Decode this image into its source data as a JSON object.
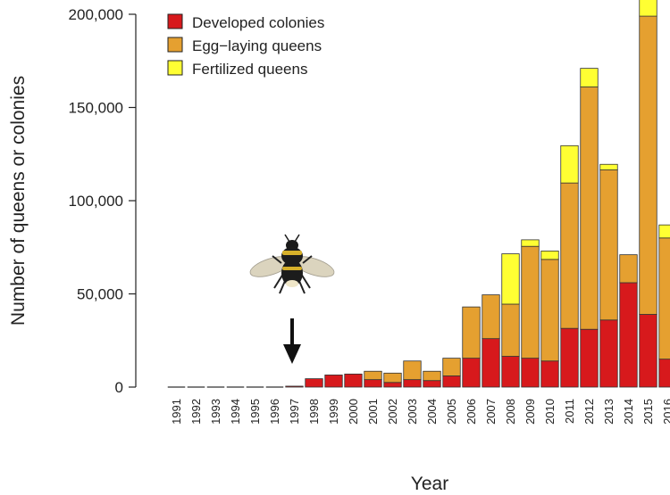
{
  "chart_data": {
    "type": "bar",
    "stacked": true,
    "xlabel": "Year",
    "ylabel": "Number of queens or colonies",
    "ylim": [
      0,
      200000
    ],
    "yticks": [
      0,
      50000,
      100000,
      150000,
      200000
    ],
    "ytick_labels": [
      "0",
      "50,000",
      "100,000",
      "150,000",
      "200,000"
    ],
    "categories": [
      "1991",
      "1992",
      "1993",
      "1994",
      "1995",
      "1996",
      "1997",
      "1998",
      "1999",
      "2000",
      "2001",
      "2002",
      "2003",
      "2004",
      "2005",
      "2006",
      "2007",
      "2008",
      "2009",
      "2010",
      "2011",
      "2012",
      "2013",
      "2014",
      "2015",
      "2016"
    ],
    "series": [
      {
        "name": "Developed colonies",
        "color": "#d7191c",
        "values": [
          0,
          0,
          0,
          0,
          0,
          0,
          500,
          4500,
          6500,
          7000,
          4000,
          2500,
          4000,
          3500,
          6000,
          15500,
          26000,
          16500,
          15500,
          14000,
          31500,
          31000,
          36000,
          56000,
          39000,
          15000
        ]
      },
      {
        "name": "Egg−laying queens",
        "color": "#e5a030",
        "values": [
          0,
          0,
          0,
          0,
          0,
          0,
          0,
          0,
          0,
          0,
          4500,
          5000,
          10000,
          5000,
          9500,
          27500,
          23500,
          28000,
          60000,
          54500,
          78000,
          130000,
          80500,
          15000,
          160000,
          65000
        ]
      },
      {
        "name": "Fertilized queens",
        "color": "#ffff33",
        "values": [
          0,
          0,
          0,
          0,
          0,
          0,
          0,
          0,
          0,
          0,
          0,
          0,
          0,
          0,
          0,
          0,
          0,
          27000,
          3500,
          4500,
          20000,
          10000,
          3000,
          0,
          14000,
          7000
        ]
      }
    ],
    "legend_position": "top-left",
    "grid": false,
    "annotations": [
      {
        "type": "bee-icon-with-arrow",
        "x": "1997"
      }
    ]
  }
}
